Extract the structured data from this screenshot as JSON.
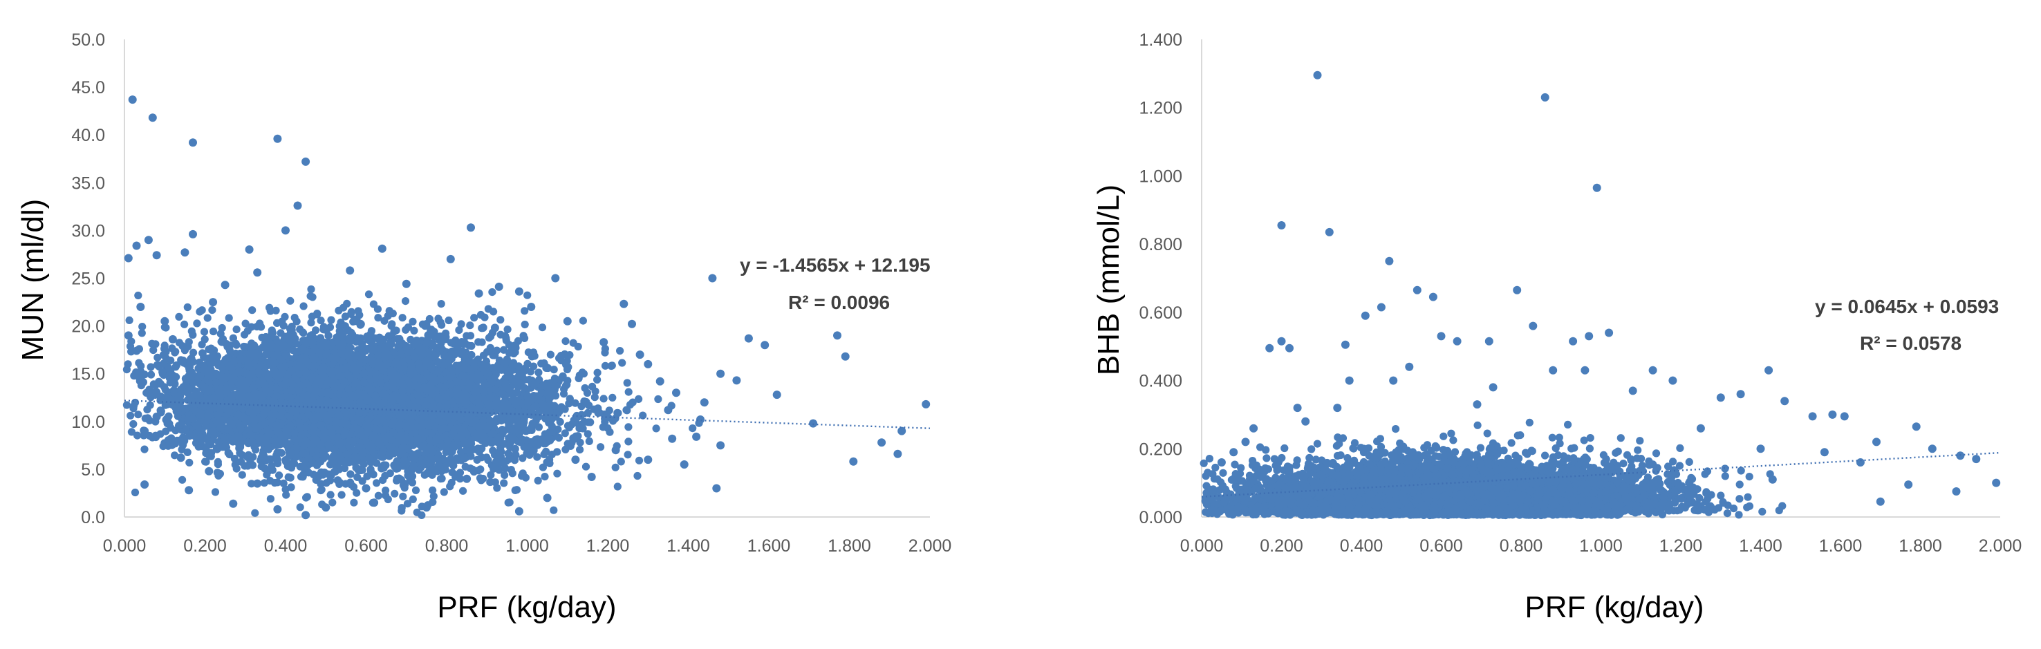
{
  "chart_data": [
    {
      "type": "scatter",
      "title": "",
      "xlabel": "PRF (kg/day)",
      "ylabel": "MUN (ml/dl)",
      "xlim": [
        0,
        2
      ],
      "ylim": [
        0,
        50
      ],
      "x_ticks": [
        "0.000",
        "0.200",
        "0.400",
        "0.600",
        "0.800",
        "1.000",
        "1.200",
        "1.400",
        "1.600",
        "1.800",
        "2.000"
      ],
      "y_ticks": [
        "0.0",
        "5.0",
        "10.0",
        "15.0",
        "20.0",
        "25.0",
        "30.0",
        "35.0",
        "40.0",
        "45.0",
        "50.0"
      ],
      "grid": false,
      "legend": "none",
      "point_color": "#4a7ebb",
      "trendline": {
        "slope": -1.4565,
        "intercept": 12.195,
        "style": "dotted",
        "equation": "y = -1.4565x + 12.195",
        "r2": "R² = 0.0096"
      },
      "series": [
        {
          "points": [
            [
              0.02,
              43.7
            ],
            [
              0.07,
              41.8
            ],
            [
              0.17,
              39.2
            ],
            [
              0.38,
              39.6
            ],
            [
              0.45,
              37.2
            ],
            [
              0.43,
              32.6
            ],
            [
              0.86,
              30.3
            ],
            [
              0.17,
              29.6
            ],
            [
              0.03,
              28.4
            ],
            [
              0.06,
              29.0
            ],
            [
              0.31,
              28.0
            ],
            [
              0.64,
              28.1
            ],
            [
              0.01,
              27.1
            ],
            [
              0.08,
              27.4
            ],
            [
              0.15,
              27.7
            ],
            [
              0.4,
              30.0
            ],
            [
              0.81,
              27.0
            ],
            [
              1.46,
              25.0
            ],
            [
              1.77,
              19.0
            ],
            [
              1.99,
              11.8
            ],
            [
              1.79,
              16.8
            ],
            [
              1.81,
              5.8
            ],
            [
              1.92,
              6.6
            ],
            [
              1.93,
              9.0
            ],
            [
              1.88,
              7.8
            ],
            [
              1.71,
              9.8
            ],
            [
              1.62,
              12.8
            ],
            [
              1.59,
              18.0
            ],
            [
              1.55,
              18.7
            ],
            [
              1.52,
              14.3
            ],
            [
              1.48,
              15.0
            ],
            [
              1.44,
              12.0
            ],
            [
              1.48,
              7.5
            ],
            [
              1.47,
              3.0
            ],
            [
              1.39,
              5.5
            ],
            [
              1.42,
              8.4
            ],
            [
              1.35,
              11.2
            ],
            [
              1.3,
              16.0
            ],
            [
              1.26,
              20.2
            ],
            [
              1.24,
              22.3
            ],
            [
              1.07,
              25.0
            ],
            [
              0.98,
              23.6
            ],
            [
              0.88,
              23.4
            ],
            [
              0.92,
              19.8
            ],
            [
              0.03,
              17.4
            ],
            [
              0.05,
              3.4
            ],
            [
              0.16,
              2.8
            ],
            [
              0.27,
              1.4
            ],
            [
              0.38,
              0.8
            ],
            [
              0.45,
              0.2
            ],
            [
              0.5,
              1.0
            ],
            [
              0.62,
              1.5
            ],
            [
              0.75,
              1.0
            ],
            [
              0.98,
              0.6
            ],
            [
              1.05,
              2.0
            ],
            [
              1.16,
              4.2
            ],
            [
              0.1,
              20.5
            ],
            [
              0.12,
              18.6
            ],
            [
              0.22,
              22.5
            ],
            [
              0.25,
              24.3
            ],
            [
              0.33,
              25.6
            ],
            [
              0.56,
              25.8
            ],
            [
              0.7,
              24.4
            ],
            [
              0.93,
              24.1
            ],
            [
              1.01,
              22.0
            ],
            [
              1.1,
              20.5
            ],
            [
              1.19,
              18.3
            ],
            [
              1.28,
              17.0
            ],
            [
              1.33,
              14.2
            ],
            [
              1.37,
              13.0
            ],
            [
              1.43,
              10.2
            ],
            [
              1.36,
              8.2
            ],
            [
              1.3,
              6.0
            ],
            [
              1.22,
              7.0
            ],
            [
              1.12,
              6.0
            ],
            [
              0.08,
              10.5
            ],
            [
              0.05,
              9.0
            ],
            [
              0.14,
              6.2
            ],
            [
              0.21,
              4.8
            ],
            [
              0.33,
              3.5
            ],
            [
              0.6,
              3.0
            ],
            [
              0.85,
              4.0
            ],
            [
              0.12,
              14.8
            ],
            [
              0.09,
              12.6
            ],
            [
              0.04,
              15.2
            ],
            [
              0.01,
              19.0
            ],
            [
              0.04,
              22.0
            ]
          ]
        }
      ],
      "cloud": {
        "x_mean": 0.58,
        "x_sd": 0.24,
        "y_mean": 12.0,
        "y_sd": 3.5,
        "count": 7000
      }
    },
    {
      "type": "scatter",
      "title": "",
      "xlabel": "PRF (kg/day)",
      "ylabel": "BHB (mmol/L)",
      "xlim": [
        0,
        2
      ],
      "ylim": [
        0,
        1.4
      ],
      "x_ticks": [
        "0.000",
        "0.200",
        "0.400",
        "0.600",
        "0.800",
        "1.000",
        "1.200",
        "1.400",
        "1.600",
        "1.800",
        "2.000"
      ],
      "y_ticks": [
        "0.000",
        "0.200",
        "0.400",
        "0.600",
        "0.800",
        "1.000",
        "1.200",
        "1.400"
      ],
      "grid": false,
      "legend": "none",
      "point_color": "#4a7ebb",
      "trendline": {
        "slope": 0.0645,
        "intercept": 0.0593,
        "style": "dotted",
        "equation": "y = 0.0645x + 0.0593",
        "r2": "R² = 0.0578"
      },
      "series": [
        {
          "points": [
            [
              0.29,
              1.295
            ],
            [
              0.86,
              1.23
            ],
            [
              0.99,
              0.965
            ],
            [
              0.2,
              0.855
            ],
            [
              0.32,
              0.835
            ],
            [
              0.47,
              0.75
            ],
            [
              0.54,
              0.665
            ],
            [
              0.79,
              0.665
            ],
            [
              0.58,
              0.645
            ],
            [
              0.45,
              0.615
            ],
            [
              0.41,
              0.59
            ],
            [
              0.2,
              0.515
            ],
            [
              0.22,
              0.495
            ],
            [
              0.36,
              0.505
            ],
            [
              0.17,
              0.495
            ],
            [
              0.6,
              0.53
            ],
            [
              0.64,
              0.515
            ],
            [
              0.72,
              0.515
            ],
            [
              0.83,
              0.56
            ],
            [
              0.93,
              0.515
            ],
            [
              0.97,
              0.53
            ],
            [
              1.02,
              0.54
            ],
            [
              1.13,
              0.43
            ],
            [
              1.42,
              0.43
            ],
            [
              1.35,
              0.36
            ],
            [
              1.46,
              0.34
            ],
            [
              1.53,
              0.295
            ],
            [
              1.58,
              0.3
            ],
            [
              1.61,
              0.295
            ],
            [
              1.69,
              0.22
            ],
            [
              1.79,
              0.265
            ],
            [
              1.83,
              0.2
            ],
            [
              1.9,
              0.18
            ],
            [
              1.94,
              0.17
            ],
            [
              1.99,
              0.1
            ],
            [
              1.89,
              0.075
            ],
            [
              1.77,
              0.095
            ],
            [
              1.7,
              0.045
            ],
            [
              1.65,
              0.16
            ],
            [
              1.56,
              0.19
            ],
            [
              1.43,
              0.11
            ],
            [
              1.4,
              0.2
            ],
            [
              1.3,
              0.35
            ],
            [
              1.25,
              0.26
            ],
            [
              1.18,
              0.4
            ],
            [
              1.08,
              0.37
            ],
            [
              0.88,
              0.43
            ],
            [
              0.96,
              0.43
            ],
            [
              0.73,
              0.38
            ],
            [
              0.69,
              0.33
            ],
            [
              0.52,
              0.44
            ],
            [
              0.48,
              0.4
            ],
            [
              0.37,
              0.4
            ],
            [
              0.34,
              0.32
            ],
            [
              0.26,
              0.28
            ],
            [
              0.24,
              0.32
            ],
            [
              0.13,
              0.26
            ],
            [
              0.11,
              0.22
            ],
            [
              0.08,
              0.19
            ],
            [
              0.05,
              0.16
            ],
            [
              0.02,
              0.08
            ],
            [
              0.03,
              0.02
            ],
            [
              0.06,
              0.05
            ],
            [
              0.09,
              0.11
            ]
          ]
        }
      ],
      "cloud": {
        "x_mean": 0.62,
        "x_sd": 0.26,
        "y_mean": 0.085,
        "y_sd": 0.05,
        "count": 7000
      }
    }
  ]
}
